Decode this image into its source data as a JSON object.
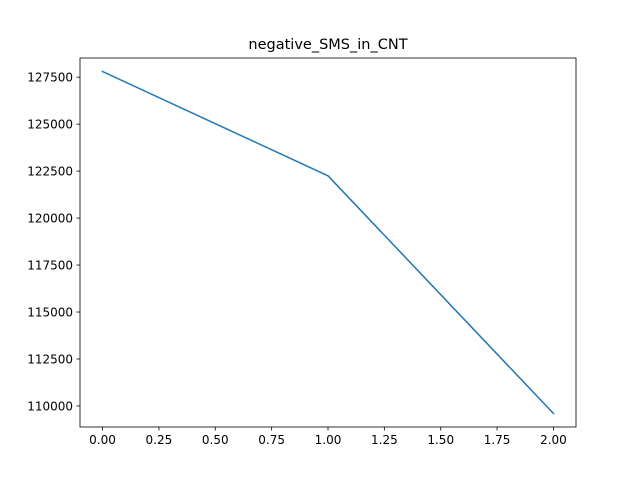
{
  "chart_data": {
    "type": "line",
    "title": "negative_SMS_in_CNT",
    "xlabel": "",
    "ylabel": "",
    "x": [
      0,
      1,
      2
    ],
    "series": [
      {
        "values": [
          127800,
          122250,
          109600
        ],
        "color": "#1f77b4"
      }
    ],
    "xlim": [
      -0.1,
      2.1
    ],
    "ylim": [
      108880,
      128520
    ],
    "xticks": [
      0.0,
      0.25,
      0.5,
      0.75,
      1.0,
      1.25,
      1.5,
      1.75,
      2.0
    ],
    "xtick_labels": [
      "0.00",
      "0.25",
      "0.50",
      "0.75",
      "1.00",
      "1.25",
      "1.50",
      "1.75",
      "2.00"
    ],
    "yticks": [
      110000,
      112500,
      115000,
      117500,
      120000,
      122500,
      125000,
      127500
    ],
    "ytick_labels": [
      "110000",
      "112500",
      "115000",
      "117500",
      "120000",
      "122500",
      "125000",
      "127500"
    ],
    "grid": false,
    "legend": "none"
  }
}
